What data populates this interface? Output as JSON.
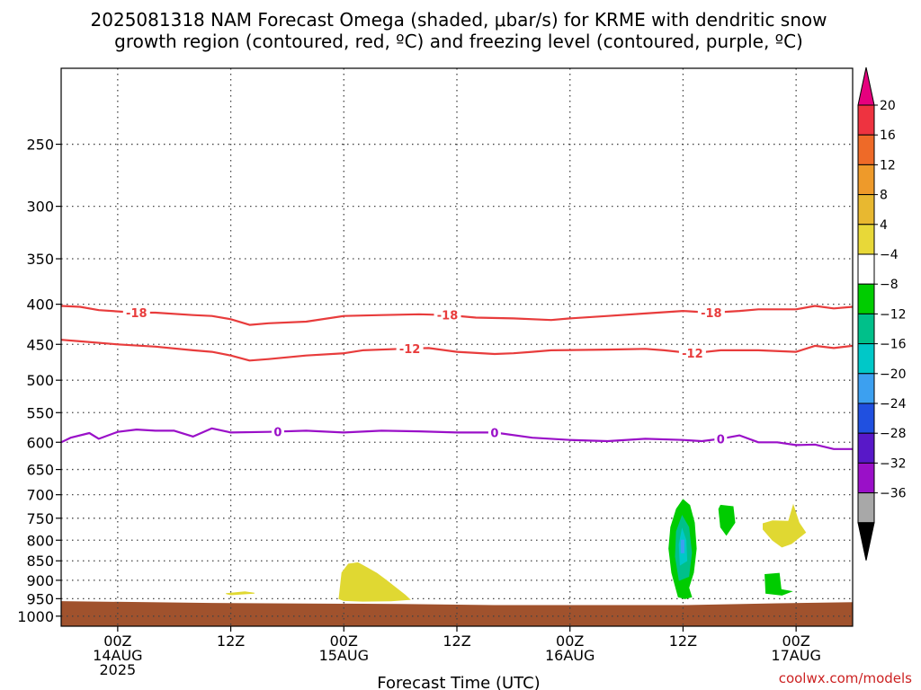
{
  "chart_data": {
    "type": "contour",
    "title_line1": "2025081318 NAM Forecast Omega (shaded, μbar/s) for KRME with dendritic snow",
    "title_line2": "growth region (contoured, red, ºC) and freezing level (contoured, purple, ºC)",
    "xlabel": "Forecast Time (UTC)",
    "credit": "coolwx.com/models",
    "xlim": [
      -6,
      78
    ],
    "ylim": [
      1030,
      200
    ],
    "yscale": "log",
    "grid": true,
    "x_ticks": [
      {
        "x": 0,
        "l1": "00Z",
        "l2": "14AUG",
        "l3": "2025"
      },
      {
        "x": 12,
        "l1": "12Z",
        "l2": "",
        "l3": ""
      },
      {
        "x": 24,
        "l1": "00Z",
        "l2": "15AUG",
        "l3": ""
      },
      {
        "x": 36,
        "l1": "12Z",
        "l2": "",
        "l3": ""
      },
      {
        "x": 48,
        "l1": "00Z",
        "l2": "16AUG",
        "l3": ""
      },
      {
        "x": 60,
        "l1": "12Z",
        "l2": "",
        "l3": ""
      },
      {
        "x": 72,
        "l1": "00Z",
        "l2": "17AUG",
        "l3": ""
      }
    ],
    "y_ticks": [
      250,
      300,
      350,
      400,
      450,
      500,
      550,
      600,
      650,
      700,
      750,
      800,
      850,
      900,
      950,
      1000
    ],
    "ground": {
      "color": "#a0522d",
      "top": [
        [
          -6,
          957
        ],
        [
          10,
          962
        ],
        [
          30,
          965
        ],
        [
          40,
          968
        ],
        [
          60,
          968
        ],
        [
          70,
          963
        ],
        [
          78,
          960
        ]
      ]
    },
    "contours": [
      {
        "name": "-18",
        "color": "#e83c3c",
        "label_x": [
          2,
          35,
          63
        ],
        "points": [
          [
            -6,
            402
          ],
          [
            -4,
            403
          ],
          [
            -2,
            407
          ],
          [
            2,
            410
          ],
          [
            4,
            410
          ],
          [
            8,
            413
          ],
          [
            10,
            414
          ],
          [
            12,
            418
          ],
          [
            14,
            425
          ],
          [
            16,
            423
          ],
          [
            20,
            421
          ],
          [
            24,
            414
          ],
          [
            28,
            413
          ],
          [
            32,
            412
          ],
          [
            35,
            413
          ],
          [
            38,
            416
          ],
          [
            42,
            417
          ],
          [
            46,
            419
          ],
          [
            48,
            417
          ],
          [
            52,
            414
          ],
          [
            56,
            411
          ],
          [
            60,
            408
          ],
          [
            63,
            410
          ],
          [
            66,
            408
          ],
          [
            68,
            406
          ],
          [
            72,
            406
          ],
          [
            74,
            402
          ],
          [
            76,
            405
          ],
          [
            78,
            403
          ]
        ]
      },
      {
        "name": "-12",
        "color": "#e83c3c",
        "label_x": [
          31,
          61
        ],
        "points": [
          [
            -6,
            444
          ],
          [
            -4,
            446
          ],
          [
            0,
            450
          ],
          [
            4,
            453
          ],
          [
            8,
            458
          ],
          [
            10,
            460
          ],
          [
            12,
            465
          ],
          [
            14,
            472
          ],
          [
            16,
            470
          ],
          [
            20,
            465
          ],
          [
            24,
            462
          ],
          [
            26,
            458
          ],
          [
            30,
            456
          ],
          [
            33,
            455
          ],
          [
            36,
            460
          ],
          [
            40,
            463
          ],
          [
            42,
            462
          ],
          [
            44,
            460
          ],
          [
            46,
            458
          ],
          [
            52,
            457
          ],
          [
            56,
            456
          ],
          [
            58,
            458
          ],
          [
            61,
            462
          ],
          [
            64,
            458
          ],
          [
            68,
            458
          ],
          [
            72,
            460
          ],
          [
            74,
            452
          ],
          [
            76,
            455
          ],
          [
            78,
            452
          ]
        ]
      },
      {
        "name": "0",
        "color": "#9a10c8",
        "label_x": [
          17,
          40,
          64
        ],
        "points": [
          [
            -6,
            600
          ],
          [
            -5,
            592
          ],
          [
            -3,
            584
          ],
          [
            -2,
            594
          ],
          [
            0,
            582
          ],
          [
            2,
            578
          ],
          [
            4,
            580
          ],
          [
            6,
            580
          ],
          [
            8,
            590
          ],
          [
            10,
            576
          ],
          [
            12,
            583
          ],
          [
            16,
            582
          ],
          [
            20,
            580
          ],
          [
            24,
            583
          ],
          [
            28,
            580
          ],
          [
            32,
            581
          ],
          [
            36,
            583
          ],
          [
            40,
            583
          ],
          [
            44,
            592
          ],
          [
            48,
            596
          ],
          [
            52,
            598
          ],
          [
            56,
            594
          ],
          [
            60,
            596
          ],
          [
            62,
            598
          ],
          [
            64,
            594
          ],
          [
            66,
            588
          ],
          [
            68,
            600
          ],
          [
            70,
            600
          ],
          [
            72,
            605
          ],
          [
            74,
            604
          ],
          [
            76,
            612
          ],
          [
            78,
            612
          ]
        ]
      }
    ],
    "omega_regions": [
      {
        "name": "4 to 8",
        "color": "#e0d832",
        "points": [
          [
            11.5,
            936
          ],
          [
            13.5,
            931
          ],
          [
            14.5,
            935
          ],
          [
            12,
            939
          ]
        ]
      },
      {
        "name": "4 to 8",
        "color": "#e0d832",
        "points": [
          [
            23.5,
            950
          ],
          [
            23.8,
            880
          ],
          [
            24.5,
            858
          ],
          [
            25.5,
            855
          ],
          [
            26.5,
            868
          ],
          [
            27.5,
            882
          ],
          [
            28.5,
            900
          ],
          [
            29.5,
            920
          ],
          [
            30.5,
            940
          ],
          [
            31,
            952
          ],
          [
            29,
            956
          ],
          [
            26,
            957
          ],
          [
            24,
            955
          ]
        ]
      },
      {
        "name": "-4 to -8",
        "color": "#00cc00",
        "points": [
          [
            59.5,
            945
          ],
          [
            58.8,
            880
          ],
          [
            58.5,
            820
          ],
          [
            58.7,
            770
          ],
          [
            59.3,
            730
          ],
          [
            60,
            710
          ],
          [
            60.7,
            722
          ],
          [
            61.2,
            760
          ],
          [
            61.4,
            820
          ],
          [
            61.1,
            880
          ],
          [
            60.6,
            920
          ],
          [
            60.9,
            945
          ],
          [
            60.2,
            950
          ]
        ]
      },
      {
        "name": "-8 to -12",
        "color": "#00c08a",
        "points": [
          [
            59.6,
            900
          ],
          [
            59.2,
            840
          ],
          [
            59.3,
            780
          ],
          [
            59.9,
            745
          ],
          [
            60.6,
            770
          ],
          [
            60.9,
            830
          ],
          [
            60.6,
            890
          ]
        ]
      },
      {
        "name": "-12 to -16",
        "color": "#00c8c8",
        "points": [
          [
            59.7,
            860
          ],
          [
            59.6,
            810
          ],
          [
            59.9,
            775
          ],
          [
            60.3,
            800
          ],
          [
            60.4,
            850
          ]
        ]
      },
      {
        "name": "-16 to -20",
        "color": "#3ca0f0",
        "points": [
          [
            59.8,
            830
          ],
          [
            59.8,
            800
          ],
          [
            60.1,
            800
          ],
          [
            60.1,
            830
          ]
        ]
      },
      {
        "name": "-4 to -8",
        "color": "#00cc00",
        "points": [
          [
            63.8,
            730
          ],
          [
            64,
            722
          ],
          [
            65.3,
            725
          ],
          [
            65.5,
            760
          ],
          [
            64.6,
            788
          ],
          [
            64,
            770
          ]
        ]
      },
      {
        "name": "4 to 8",
        "color": "#e0d832",
        "points": [
          [
            68.5,
            762
          ],
          [
            69.5,
            756
          ],
          [
            71.2,
            757
          ],
          [
            71.7,
            722
          ],
          [
            72.3,
            760
          ],
          [
            73,
            782
          ],
          [
            71.5,
            808
          ],
          [
            70.5,
            816
          ],
          [
            69.5,
            800
          ],
          [
            68.5,
            775
          ]
        ]
      },
      {
        "name": "-4 to -8",
        "color": "#00cc00",
        "points": [
          [
            68.7,
            885
          ],
          [
            70.2,
            882
          ],
          [
            70.4,
            925
          ],
          [
            71.5,
            930
          ],
          [
            70.5,
            940
          ],
          [
            68.8,
            935
          ]
        ]
      }
    ],
    "colorbar": {
      "labels": [
        "20",
        "16",
        "12",
        "8",
        "4",
        "−4",
        "−8",
        "−12",
        "−16",
        "−20",
        "−24",
        "−28",
        "−32",
        "−36"
      ],
      "colors": [
        "#ee3340",
        "#ee6a28",
        "#ee9a2a",
        "#e8b830",
        "#e8d838",
        "#ffffff",
        "#00cc00",
        "#00c08a",
        "#00c8c8",
        "#3ca0f0",
        "#2050e0",
        "#5818c8",
        "#9a10c8",
        "#a8a8a8"
      ],
      "top_color": "#e6007e",
      "bottom_color": "#000000"
    }
  }
}
